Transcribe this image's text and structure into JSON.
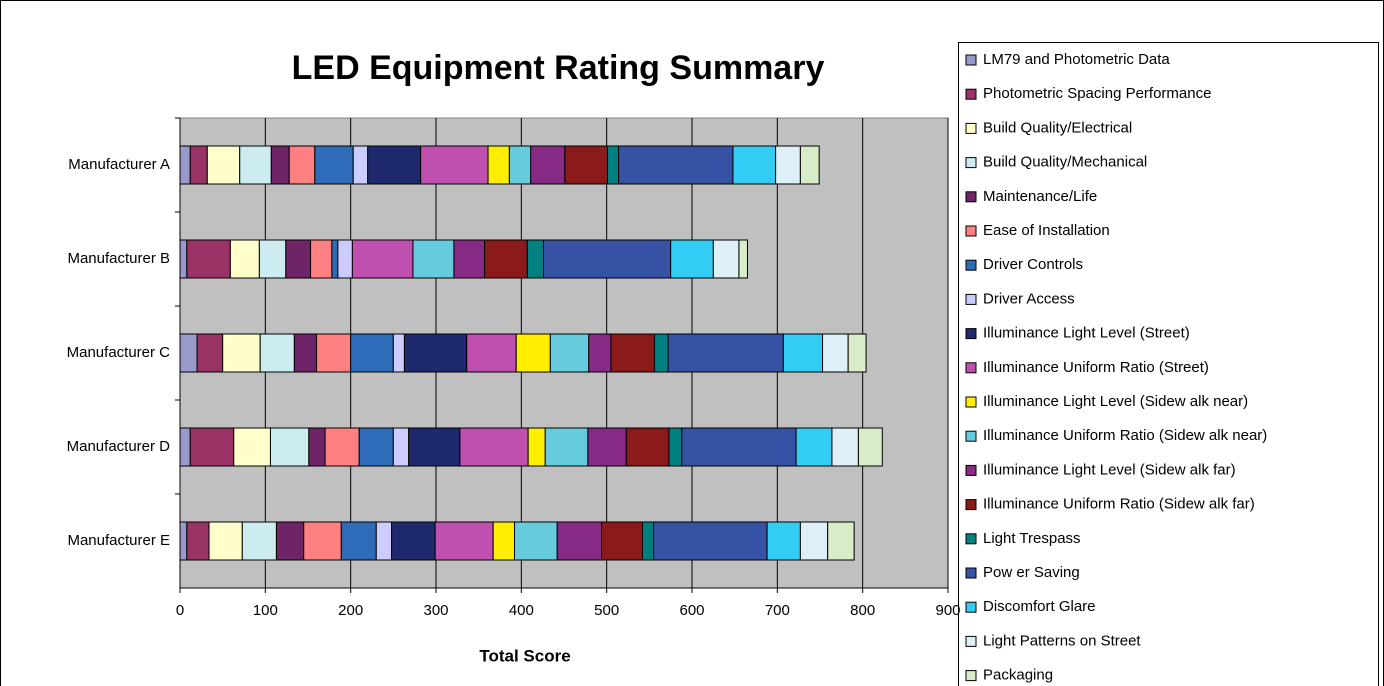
{
  "chart_data": {
    "type": "bar",
    "orientation": "horizontal",
    "stacked": true,
    "title": "LED Equipment Rating Summary",
    "x_label": "Total Score",
    "categories": [
      "Manufacturer A",
      "Manufacturer B",
      "Manufacturer C",
      "Manufacturer D",
      "Manufacturer E"
    ],
    "xlim": [
      0,
      900
    ],
    "xticks": [
      0,
      100,
      200,
      300,
      400,
      500,
      600,
      700,
      800,
      900
    ],
    "grid": true,
    "legend": "right",
    "series": [
      {
        "name": "LM79 and Photometric Data",
        "color": "#9999cc",
        "values": [
          12,
          8,
          20,
          12,
          8
        ]
      },
      {
        "name": "Photometric Spacing Performance",
        "color": "#993366",
        "values": [
          20,
          51,
          30,
          51,
          26
        ]
      },
      {
        "name": "Build Quality/Electrical",
        "color": "#ffffcc",
        "values": [
          38,
          34,
          44,
          43,
          39
        ]
      },
      {
        "name": "Build Quality/Mechanical",
        "color": "#ccecf0",
        "values": [
          37,
          31,
          40,
          45,
          40
        ]
      },
      {
        "name": "Maintenance/Life",
        "color": "#6e2466",
        "values": [
          21,
          29,
          26,
          19,
          32
        ]
      },
      {
        "name": "Ease of Installation",
        "color": "#ff8080",
        "values": [
          30,
          25,
          40,
          40,
          44
        ]
      },
      {
        "name": "Driver Controls",
        "color": "#2e6bb8",
        "values": [
          45,
          7,
          50,
          40,
          41
        ]
      },
      {
        "name": "Driver Access",
        "color": "#ccccff",
        "values": [
          17,
          17,
          13,
          18,
          18
        ]
      },
      {
        "name": "Illuminance Light Level (Street)",
        "color": "#1f2a6e",
        "values": [
          62,
          0,
          73,
          60,
          51
        ]
      },
      {
        "name": "Illuminance Uniform Ratio (Street)",
        "color": "#c050b0",
        "values": [
          79,
          71,
          58,
          80,
          68
        ]
      },
      {
        "name": "Illuminance Light Level (Sidew alk near)",
        "color": "#ffee00",
        "values": [
          25,
          0,
          40,
          20,
          25
        ]
      },
      {
        "name": "Illuminance Uniform Ratio (Sidew alk near)",
        "color": "#66ccdd",
        "values": [
          25,
          48,
          45,
          50,
          50
        ]
      },
      {
        "name": "Illuminance Light Level (Sidew alk far)",
        "color": "#862a86",
        "values": [
          40,
          36,
          26,
          45,
          52
        ]
      },
      {
        "name": "Illuminance Uniform Ratio (Sidew alk far)",
        "color": "#8b1a1a",
        "values": [
          50,
          50,
          51,
          50,
          48
        ]
      },
      {
        "name": "Light Trespass",
        "color": "#008080",
        "values": [
          13,
          19,
          16,
          15,
          13
        ]
      },
      {
        "name": "Pow er Saving",
        "color": "#3652a4",
        "values": [
          134,
          149,
          135,
          134,
          133
        ]
      },
      {
        "name": "Discomfort Glare",
        "color": "#33ccf5",
        "values": [
          50,
          50,
          46,
          42,
          39
        ]
      },
      {
        "name": "Light Patterns on Street",
        "color": "#ddf0f8",
        "values": [
          29,
          30,
          30,
          31,
          32
        ]
      },
      {
        "name": "Packaging",
        "color": "#d8ecc8",
        "values": [
          22,
          10,
          21,
          28,
          31
        ]
      }
    ]
  }
}
